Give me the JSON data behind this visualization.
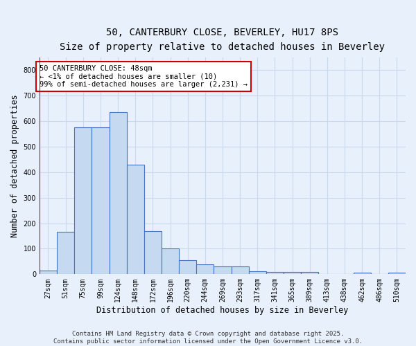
{
  "title1": "50, CANTERBURY CLOSE, BEVERLEY, HU17 8PS",
  "title2": "Size of property relative to detached houses in Beverley",
  "xlabel": "Distribution of detached houses by size in Beverley",
  "ylabel": "Number of detached properties",
  "categories": [
    "27sqm",
    "51sqm",
    "75sqm",
    "99sqm",
    "124sqm",
    "148sqm",
    "172sqm",
    "196sqm",
    "220sqm",
    "244sqm",
    "269sqm",
    "293sqm",
    "317sqm",
    "341sqm",
    "365sqm",
    "389sqm",
    "413sqm",
    "438sqm",
    "462sqm",
    "486sqm",
    "510sqm"
  ],
  "values": [
    15,
    165,
    575,
    575,
    635,
    430,
    170,
    100,
    55,
    38,
    30,
    30,
    12,
    10,
    10,
    8,
    0,
    0,
    5,
    0,
    5
  ],
  "bar_color": "#c5d9f1",
  "bar_edge_color": "#4472c4",
  "bar_linewidth": 0.8,
  "vline_x": -0.5,
  "vline_color": "#cc0000",
  "annotation_text": "50 CANTERBURY CLOSE: 48sqm\n← <1% of detached houses are smaller (10)\n99% of semi-detached houses are larger (2,231) →",
  "annotation_box_color": "#ffffff",
  "annotation_box_edge": "#cc0000",
  "ylim": [
    0,
    850
  ],
  "yticks": [
    0,
    100,
    200,
    300,
    400,
    500,
    600,
    700,
    800
  ],
  "grid_color": "#c8d8ee",
  "bg_color": "#e8f0fb",
  "footer_text": "Contains HM Land Registry data © Crown copyright and database right 2025.\nContains public sector information licensed under the Open Government Licence v3.0.",
  "title1_fontsize": 10,
  "title2_fontsize": 9,
  "xlabel_fontsize": 8.5,
  "ylabel_fontsize": 8.5,
  "tick_fontsize": 7,
  "annotation_fontsize": 7.5,
  "footer_fontsize": 6.5
}
